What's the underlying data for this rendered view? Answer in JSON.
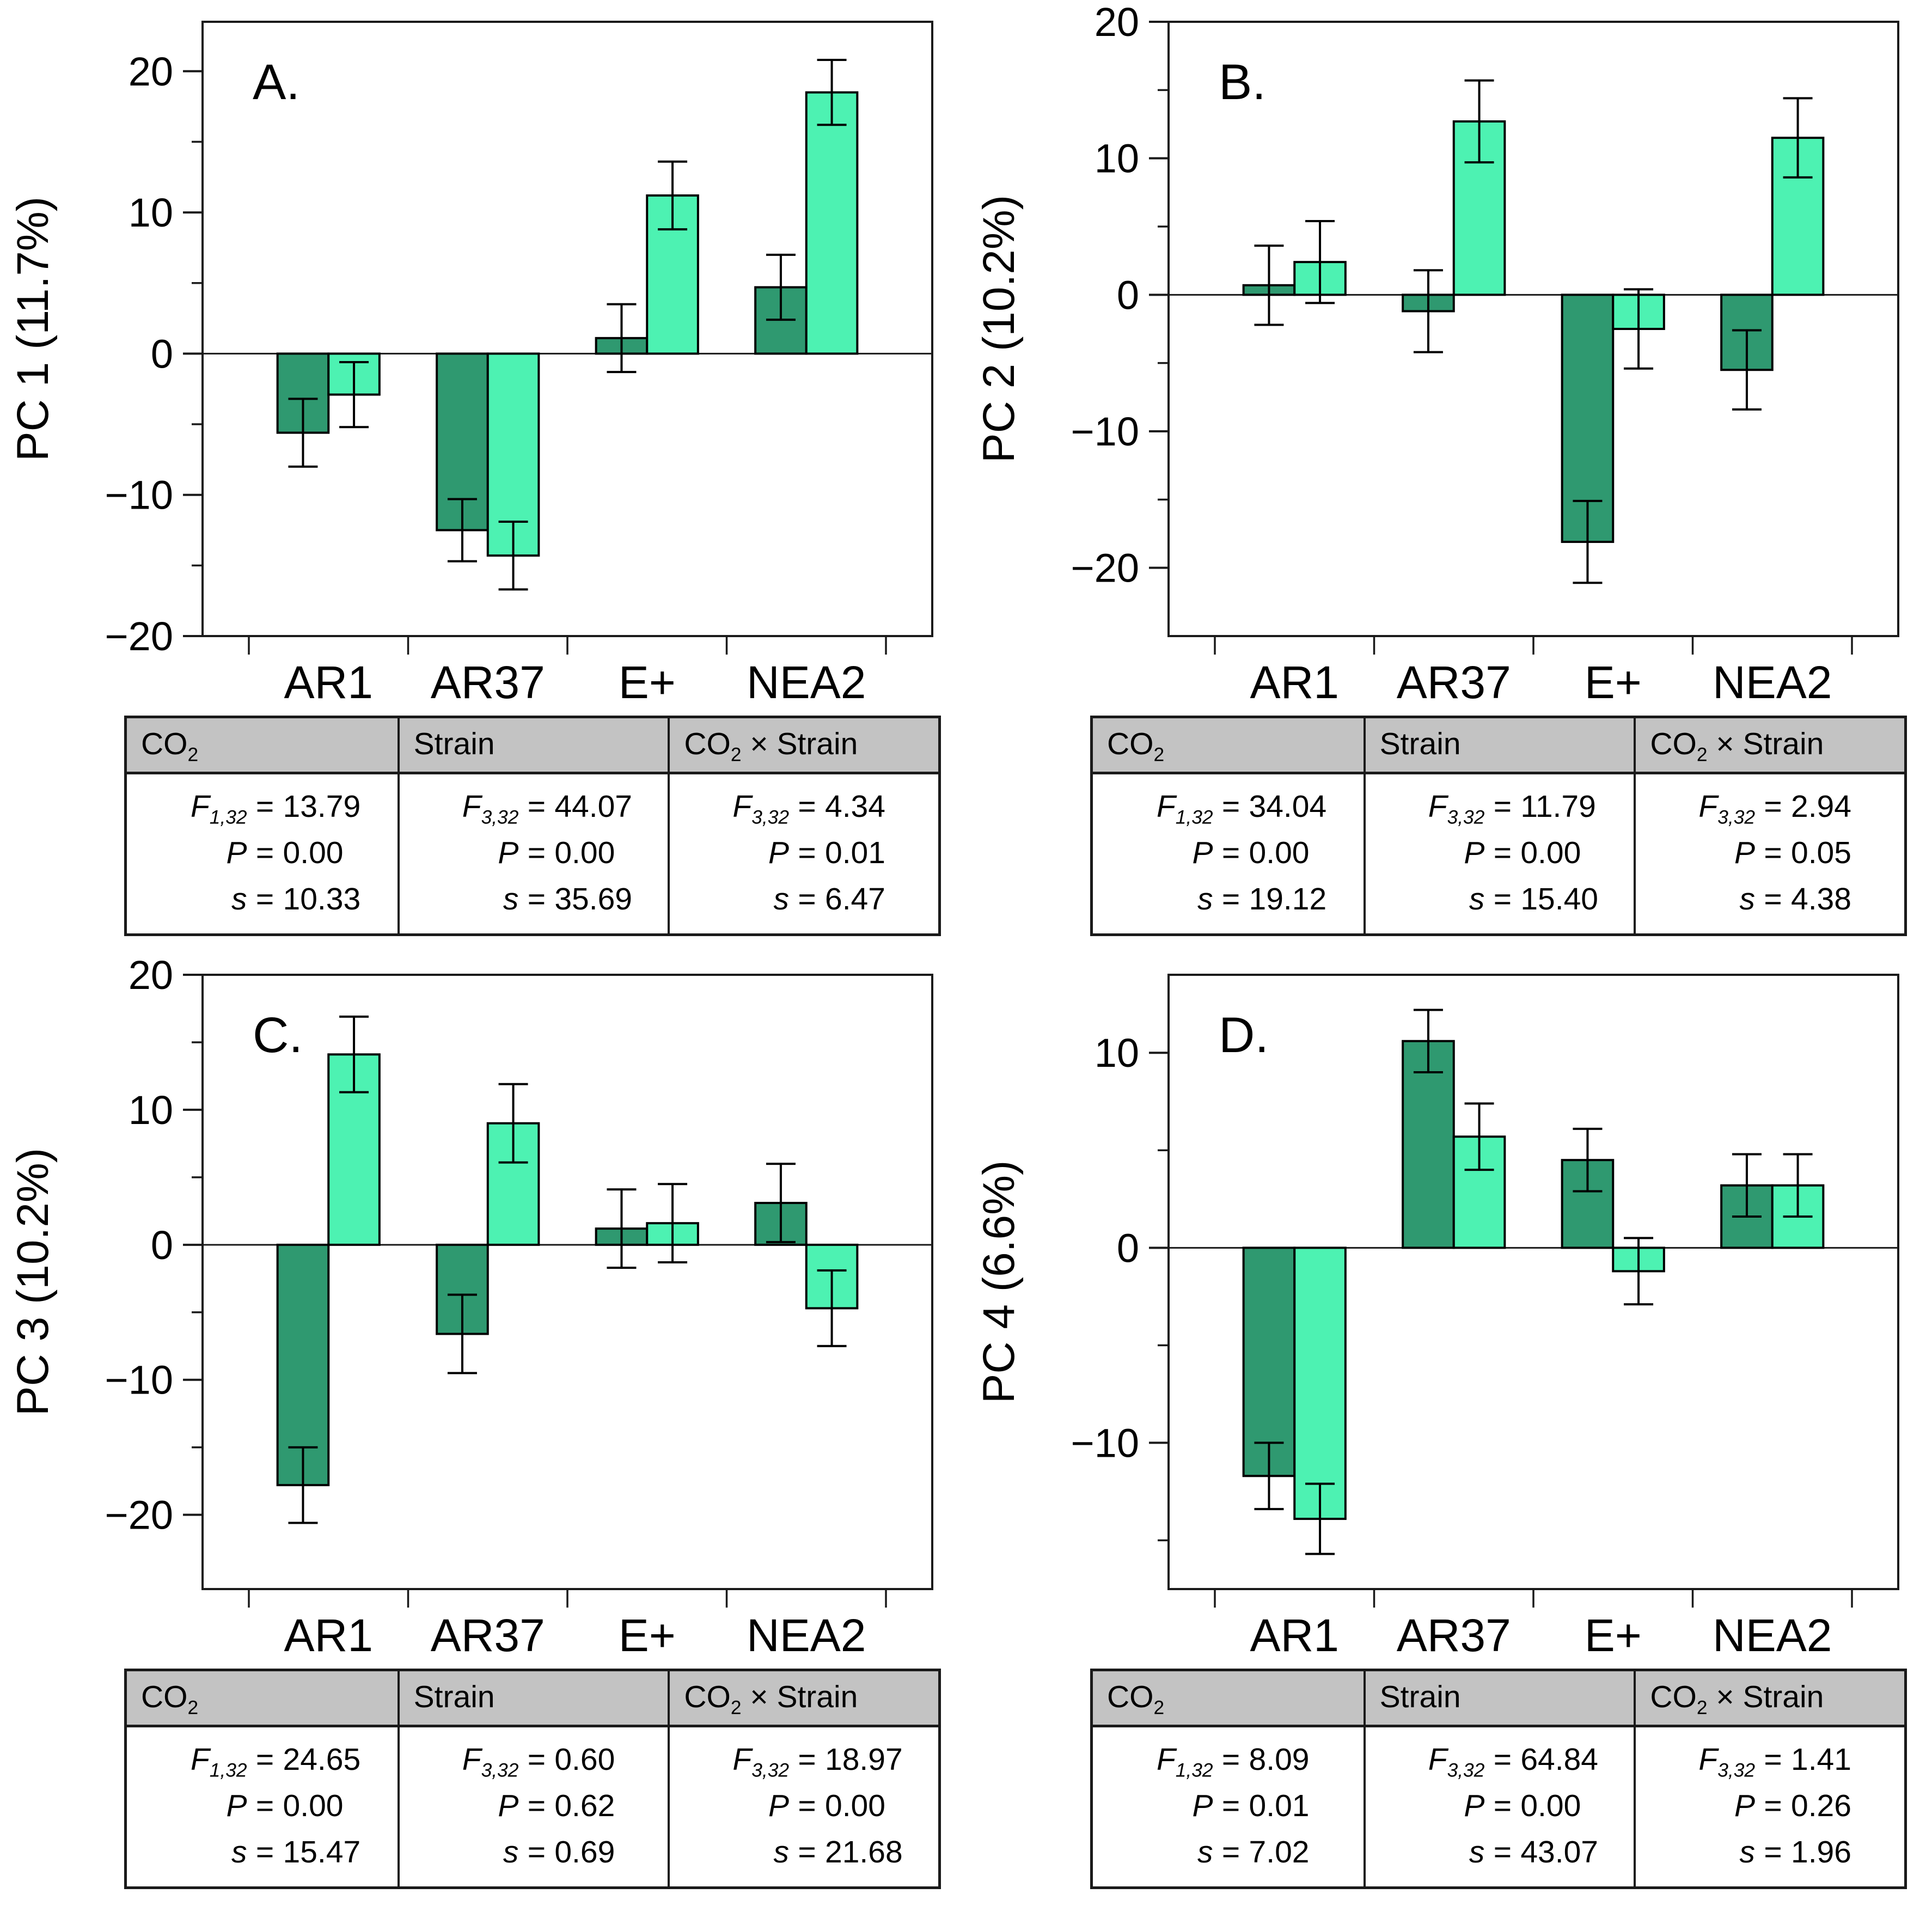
{
  "figure_title": "",
  "categories": [
    "AR1",
    "AR37",
    "E+",
    "NEA2"
  ],
  "labels": {
    "eq": "="
  },
  "colors": {
    "dark_green": "#2f9970",
    "light_green": "#4df2b2",
    "table_header_bg": "#c3c3c3",
    "line": "#1a1a1a",
    "background": "#ffffff"
  },
  "chart_data": [
    {
      "type": "bar",
      "letter": "A.",
      "ylabel": "PC 1 (11.7%)",
      "ylim": [
        -20,
        23.5
      ],
      "yticks": [
        20,
        10,
        0,
        -10,
        -20
      ],
      "ytick_labels": [
        "20",
        "10",
        "0",
        "−10",
        "−20"
      ],
      "yminor": [
        15,
        5,
        -5,
        -15
      ],
      "grid": false,
      "legend": "none",
      "series": [
        {
          "name": "dark-green",
          "color": "#2f9970",
          "values": [
            -5.6,
            -12.5,
            1.1,
            4.7
          ],
          "errors": [
            2.4,
            2.2,
            2.4,
            2.3
          ]
        },
        {
          "name": "light-green",
          "color": "#4df2b2",
          "values": [
            -2.9,
            -14.3,
            11.2,
            18.5
          ],
          "errors": [
            2.3,
            2.4,
            2.4,
            2.3
          ]
        }
      ],
      "stats": [
        {
          "header": {
            "main": "CO",
            "sub": "2",
            "rest": ""
          },
          "lines": [
            {
              "var": "F",
              "sub": "1,32",
              "value": "13.79"
            },
            {
              "var": "P",
              "sub": "",
              "value": "0.00"
            },
            {
              "var": "s",
              "sub": "",
              "value": "10.33"
            }
          ]
        },
        {
          "header": {
            "main": "Strain",
            "sub": "",
            "rest": ""
          },
          "lines": [
            {
              "var": "F",
              "sub": "3,32",
              "value": "44.07"
            },
            {
              "var": "P",
              "sub": "",
              "value": "0.00"
            },
            {
              "var": "s",
              "sub": "",
              "value": "35.69"
            }
          ]
        },
        {
          "header": {
            "main": "CO",
            "sub": "2",
            "rest": " × Strain"
          },
          "lines": [
            {
              "var": "F",
              "sub": "3,32",
              "value": "4.34"
            },
            {
              "var": "P",
              "sub": "",
              "value": "0.01"
            },
            {
              "var": "s",
              "sub": "",
              "value": "6.47"
            }
          ]
        }
      ]
    },
    {
      "type": "bar",
      "letter": "B.",
      "ylabel": "PC 2 (10.2%)",
      "ylim": [
        -25,
        20
      ],
      "yticks": [
        20,
        10,
        0,
        -10,
        -20
      ],
      "ytick_labels": [
        "20",
        "10",
        "0",
        "−10",
        "−20"
      ],
      "yminor": [
        15,
        5,
        -5,
        -15
      ],
      "grid": false,
      "legend": "none",
      "series": [
        {
          "name": "dark-green",
          "color": "#2f9970",
          "values": [
            0.7,
            -1.2,
            -18.1,
            -5.5
          ],
          "errors": [
            2.9,
            3.0,
            3.0,
            2.9
          ]
        },
        {
          "name": "light-green",
          "color": "#4df2b2",
          "values": [
            2.4,
            12.7,
            -2.5,
            11.5
          ],
          "errors": [
            3.0,
            3.0,
            2.9,
            2.9
          ]
        }
      ],
      "stats": [
        {
          "header": {
            "main": "CO",
            "sub": "2",
            "rest": ""
          },
          "lines": [
            {
              "var": "F",
              "sub": "1,32",
              "value": "34.04"
            },
            {
              "var": "P",
              "sub": "",
              "value": "0.00"
            },
            {
              "var": "s",
              "sub": "",
              "value": "19.12"
            }
          ]
        },
        {
          "header": {
            "main": "Strain",
            "sub": "",
            "rest": ""
          },
          "lines": [
            {
              "var": "F",
              "sub": "3,32",
              "value": "11.79"
            },
            {
              "var": "P",
              "sub": "",
              "value": "0.00"
            },
            {
              "var": "s",
              "sub": "",
              "value": "15.40"
            }
          ]
        },
        {
          "header": {
            "main": "CO",
            "sub": "2",
            "rest": " × Strain"
          },
          "lines": [
            {
              "var": "F",
              "sub": "3,32",
              "value": "2.94"
            },
            {
              "var": "P",
              "sub": "",
              "value": "0.05"
            },
            {
              "var": "s",
              "sub": "",
              "value": "4.38"
            }
          ]
        }
      ]
    },
    {
      "type": "bar",
      "letter": "C.",
      "ylabel": "PC 3 (10.2%)",
      "ylim": [
        -25.5,
        20
      ],
      "yticks": [
        20,
        10,
        0,
        -10,
        -20
      ],
      "ytick_labels": [
        "20",
        "10",
        "0",
        "−10",
        "−20"
      ],
      "yminor": [
        15,
        5,
        -5,
        -15
      ],
      "grid": false,
      "legend": "none",
      "series": [
        {
          "name": "dark-green",
          "color": "#2f9970",
          "values": [
            -17.8,
            -6.6,
            1.2,
            3.1
          ],
          "errors": [
            2.8,
            2.9,
            2.9,
            2.9
          ]
        },
        {
          "name": "light-green",
          "color": "#4df2b2",
          "values": [
            14.1,
            9.0,
            1.6,
            -4.7
          ],
          "errors": [
            2.8,
            2.9,
            2.9,
            2.8
          ]
        }
      ],
      "stats": [
        {
          "header": {
            "main": "CO",
            "sub": "2",
            "rest": ""
          },
          "lines": [
            {
              "var": "F",
              "sub": "1,32",
              "value": "24.65"
            },
            {
              "var": "P",
              "sub": "",
              "value": "0.00"
            },
            {
              "var": "s",
              "sub": "",
              "value": "15.47"
            }
          ]
        },
        {
          "header": {
            "main": "Strain",
            "sub": "",
            "rest": ""
          },
          "lines": [
            {
              "var": "F",
              "sub": "3,32",
              "value": "0.60"
            },
            {
              "var": "P",
              "sub": "",
              "value": "0.62"
            },
            {
              "var": "s",
              "sub": "",
              "value": "0.69"
            }
          ]
        },
        {
          "header": {
            "main": "CO",
            "sub": "2",
            "rest": " × Strain"
          },
          "lines": [
            {
              "var": "F",
              "sub": "3,32",
              "value": "18.97"
            },
            {
              "var": "P",
              "sub": "",
              "value": "0.00"
            },
            {
              "var": "s",
              "sub": "",
              "value": "21.68"
            }
          ]
        }
      ]
    },
    {
      "type": "bar",
      "letter": "D.",
      "ylabel": "PC 4 (6.6%)",
      "ylim": [
        -17.5,
        14
      ],
      "yticks": [
        10,
        0,
        -10
      ],
      "ytick_labels": [
        "10",
        "0",
        "−10"
      ],
      "yminor": [
        5,
        -5,
        -15
      ],
      "grid": false,
      "legend": "none",
      "series": [
        {
          "name": "dark-green",
          "color": "#2f9970",
          "values": [
            -11.7,
            10.6,
            4.5,
            3.2
          ],
          "errors": [
            1.7,
            1.6,
            1.6,
            1.6
          ]
        },
        {
          "name": "light-green",
          "color": "#4df2b2",
          "values": [
            -13.9,
            5.7,
            -1.2,
            3.2
          ],
          "errors": [
            1.8,
            1.7,
            1.7,
            1.6
          ]
        }
      ],
      "stats": [
        {
          "header": {
            "main": "CO",
            "sub": "2",
            "rest": ""
          },
          "lines": [
            {
              "var": "F",
              "sub": "1,32",
              "value": "8.09"
            },
            {
              "var": "P",
              "sub": "",
              "value": "0.01"
            },
            {
              "var": "s",
              "sub": "",
              "value": "7.02"
            }
          ]
        },
        {
          "header": {
            "main": "Strain",
            "sub": "",
            "rest": ""
          },
          "lines": [
            {
              "var": "F",
              "sub": "3,32",
              "value": "64.84"
            },
            {
              "var": "P",
              "sub": "",
              "value": "0.00"
            },
            {
              "var": "s",
              "sub": "",
              "value": "43.07"
            }
          ]
        },
        {
          "header": {
            "main": "CO",
            "sub": "2",
            "rest": " × Strain"
          },
          "lines": [
            {
              "var": "F",
              "sub": "3,32",
              "value": "1.41"
            },
            {
              "var": "P",
              "sub": "",
              "value": "0.26"
            },
            {
              "var": "s",
              "sub": "",
              "value": "1.96"
            }
          ]
        }
      ]
    }
  ]
}
